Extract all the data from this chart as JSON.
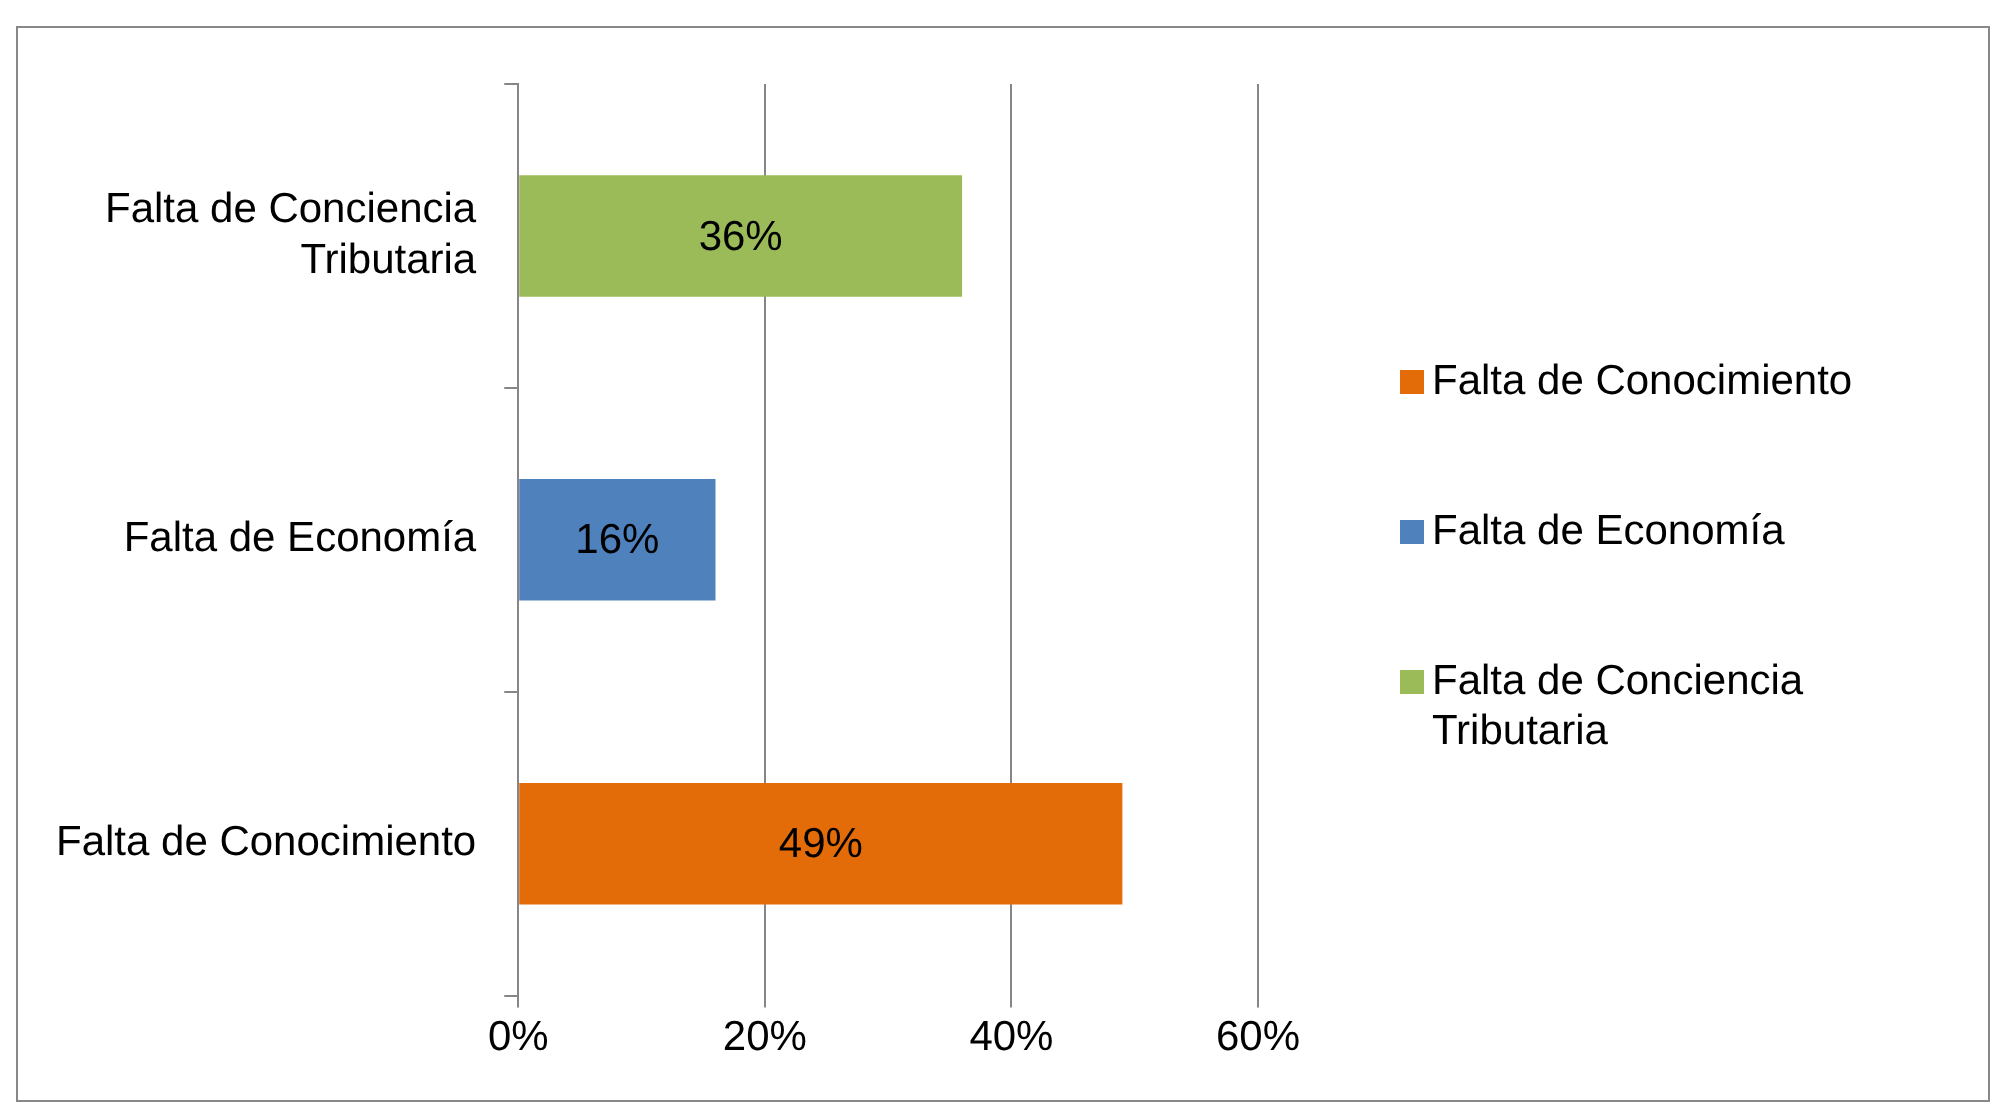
{
  "chart_data": {
    "type": "bar",
    "orientation": "horizontal",
    "stacked": true,
    "categories": [
      "Falta de Conciencia Tributaria",
      "Falta de Economía",
      "Falta de Conocimiento"
    ],
    "series": [
      {
        "name": "Falta de Conocimiento",
        "color": "#e36c09",
        "values": [
          null,
          null,
          49
        ],
        "value_labels": [
          null,
          null,
          "49%"
        ]
      },
      {
        "name": "Falta de Economía",
        "color": "#4f81bd",
        "values": [
          null,
          16,
          null
        ],
        "value_labels": [
          null,
          "16%",
          null
        ]
      },
      {
        "name": "Falta de Conciencia Tributaria",
        "color": "#9bbb59",
        "values": [
          36,
          null,
          null
        ],
        "value_labels": [
          "36%",
          null,
          null
        ]
      }
    ],
    "xlim": [
      0,
      60
    ],
    "xticks": [
      {
        "value": 0,
        "label": "0%"
      },
      {
        "value": 20,
        "label": "20%"
      },
      {
        "value": 40,
        "label": "40%"
      },
      {
        "value": 60,
        "label": "60%"
      }
    ],
    "grid": "x",
    "legend": "right"
  }
}
